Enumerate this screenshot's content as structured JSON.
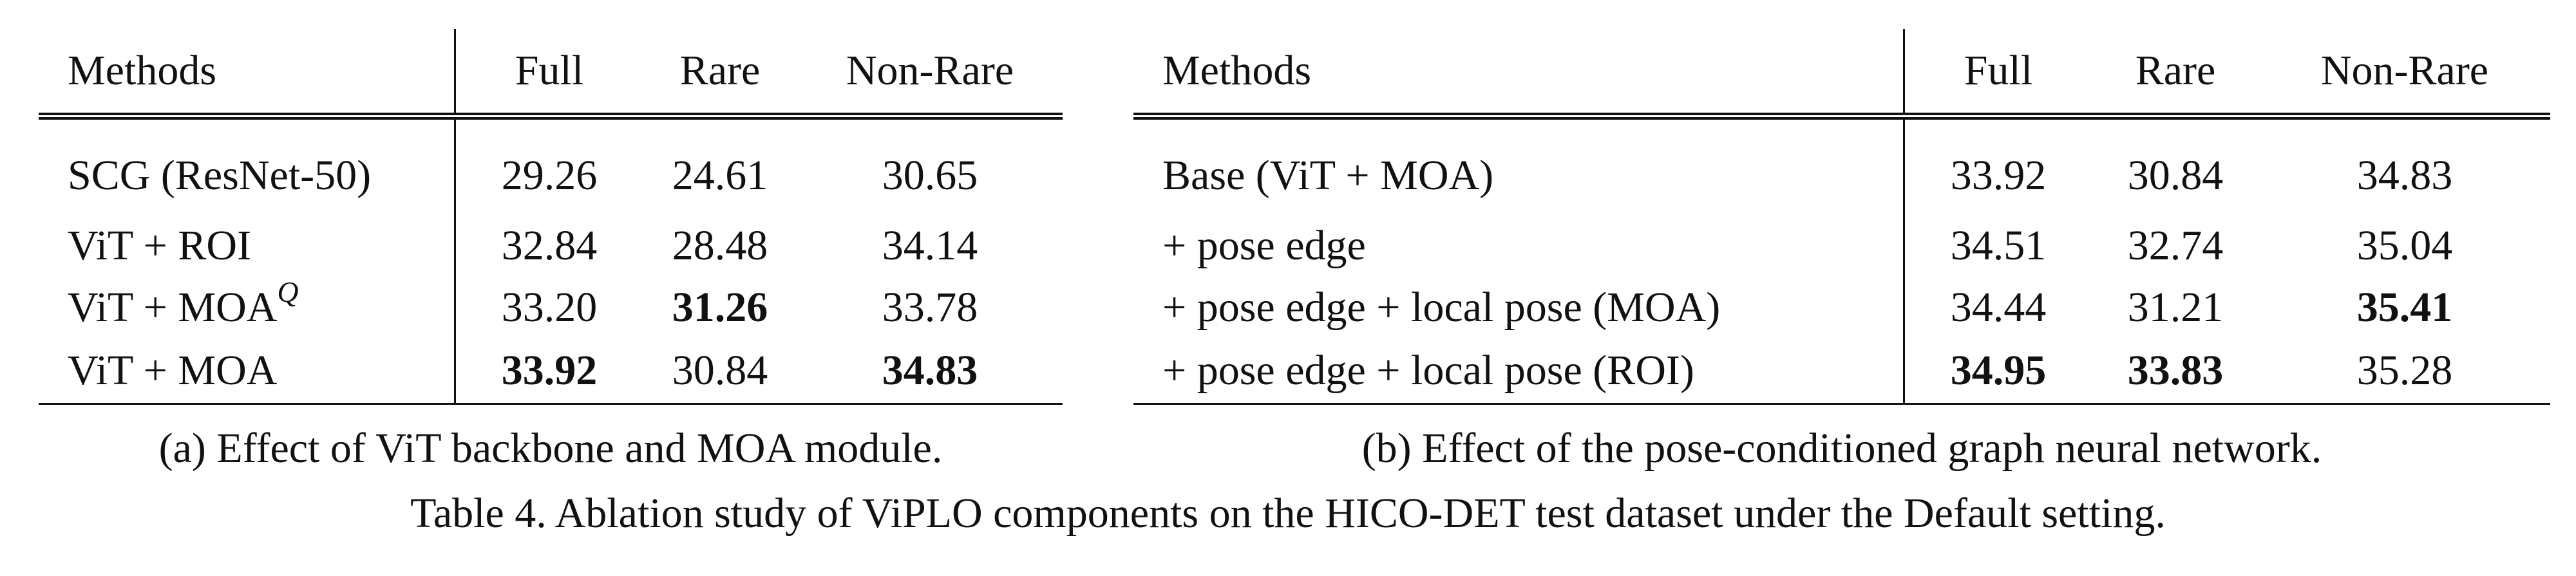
{
  "table_a": {
    "headers": [
      "Methods",
      "Full",
      "Rare",
      "Non-Rare"
    ],
    "rows": [
      {
        "method": "SCG (ResNet-50)",
        "method_sup": "",
        "full": "29.26",
        "rare": "24.61",
        "nonrare": "30.65"
      },
      {
        "method": "ViT + ROI",
        "method_sup": "",
        "full": "32.84",
        "rare": "28.48",
        "nonrare": "34.14"
      },
      {
        "method": "ViT + MOA",
        "method_sup": "Q",
        "full": "33.20",
        "rare": "31.26",
        "nonrare": "33.78"
      },
      {
        "method": "ViT + MOA",
        "method_sup": "",
        "full": "33.92",
        "rare": "30.84",
        "nonrare": "34.83"
      }
    ],
    "caption": "(a) Effect of ViT backbone and MOA module."
  },
  "table_b": {
    "headers": [
      "Methods",
      "Full",
      "Rare",
      "Non-Rare"
    ],
    "rows": [
      {
        "method": "Base (ViT + MOA)",
        "full": "33.92",
        "rare": "30.84",
        "nonrare": "34.83"
      },
      {
        "method": "+ pose edge",
        "full": "34.51",
        "rare": "32.74",
        "nonrare": "35.04"
      },
      {
        "method": "+ pose edge + local pose (MOA)",
        "full": "34.44",
        "rare": "31.21",
        "nonrare": "35.41"
      },
      {
        "method": "+ pose edge + local pose (ROI)",
        "full": "34.95",
        "rare": "33.83",
        "nonrare": "35.28"
      }
    ],
    "caption": "(b) Effect of the pose-conditioned graph neural network."
  },
  "caption": "Table 4. Ablation study of ViPLO components on the HICO-DET test dataset under the Default setting."
}
